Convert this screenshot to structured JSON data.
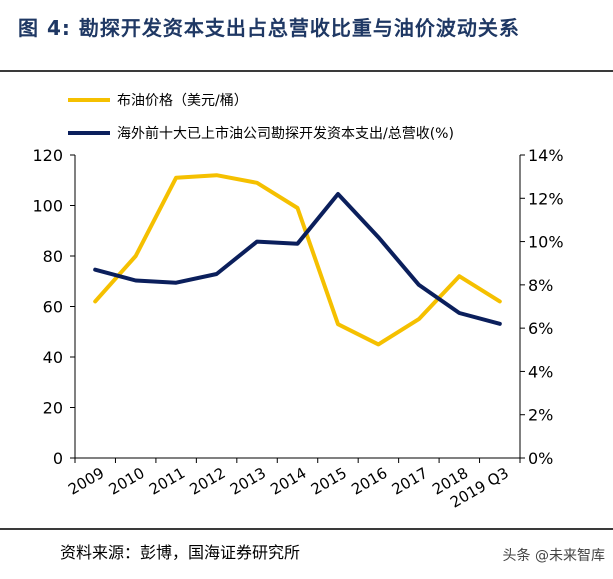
{
  "figure_title": "图 4:  勘探开发资本支出占总营收比重与油价波动关系",
  "source_text": "资料来源：彭博，国海证券研究所",
  "watermark_text": "头条 @未来智库",
  "colors": {
    "oil_line": "#f5c000",
    "capex_line": "#0b1f5c",
    "axis": "#000000",
    "title": "#1f3864"
  },
  "chart_data": {
    "type": "line",
    "categories": [
      "2009",
      "2010",
      "2011",
      "2012",
      "2013",
      "2014",
      "2015",
      "2016",
      "2017",
      "2018",
      "2019 Q3"
    ],
    "series": [
      {
        "name": "布油价格（美元/桶）",
        "axis": "left",
        "values": [
          62,
          80,
          111,
          112,
          109,
          99,
          53,
          45,
          55,
          72,
          62
        ]
      },
      {
        "name": "海外前十大已上市油公司勘探开发资本支出/总营收(%)",
        "axis": "right",
        "values": [
          8.7,
          8.2,
          8.1,
          8.5,
          10.0,
          9.9,
          12.2,
          10.2,
          8.0,
          6.7,
          6.2
        ]
      }
    ],
    "y_left": {
      "ylim": [
        0,
        120
      ],
      "ticks": [
        "0",
        "20",
        "40",
        "60",
        "80",
        "100",
        "120"
      ]
    },
    "y_right": {
      "ylim": [
        0,
        14
      ],
      "ticks": [
        "0%",
        "2%",
        "4%",
        "6%",
        "8%",
        "10%",
        "12%",
        "14%"
      ]
    },
    "legend_position": "top-left",
    "grid": false
  }
}
